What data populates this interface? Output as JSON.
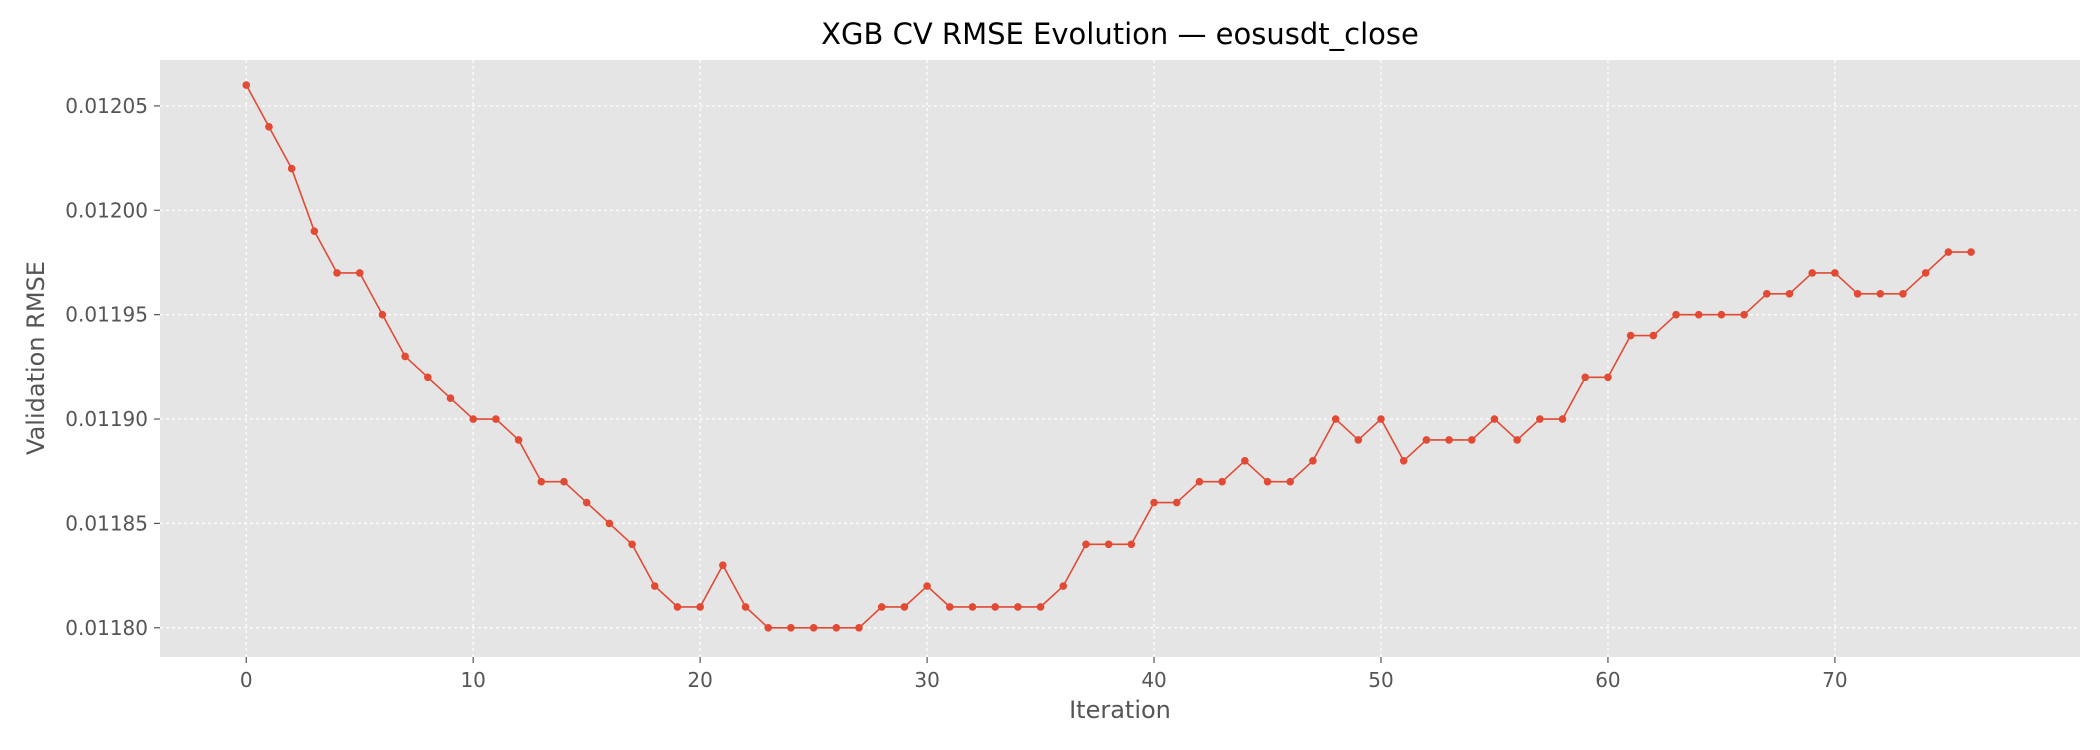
{
  "chart_data": {
    "type": "line",
    "title": "XGB CV RMSE Evolution — eosusdt_close",
    "xlabel": "Iteration",
    "ylabel": "Validation RMSE",
    "xlim": [
      -3.8,
      80.8
    ],
    "ylim": [
      0.011786,
      0.012072
    ],
    "xticks": [
      0,
      10,
      20,
      30,
      40,
      50,
      60,
      70
    ],
    "xtick_labels": [
      "0",
      "10",
      "20",
      "30",
      "40",
      "50",
      "60",
      "70"
    ],
    "yticks": [
      0.0118,
      0.01185,
      0.0119,
      0.01195,
      0.012,
      0.01205
    ],
    "ytick_labels": [
      "0.01180",
      "0.01185",
      "0.01190",
      "0.01195",
      "0.01200",
      "0.01205"
    ],
    "grid": true,
    "series": [
      {
        "color": "#e24a33",
        "x": [
          0,
          1,
          2,
          3,
          4,
          5,
          6,
          7,
          8,
          9,
          10,
          11,
          12,
          13,
          14,
          15,
          16,
          17,
          18,
          19,
          20,
          21,
          22,
          23,
          24,
          25,
          26,
          27,
          28,
          29,
          30,
          31,
          32,
          33,
          34,
          35,
          36,
          37,
          38,
          39,
          40,
          41,
          42,
          43,
          44,
          45,
          46,
          47,
          48,
          49,
          50,
          51,
          52,
          53,
          54,
          55,
          56,
          57,
          58,
          59,
          60,
          61,
          62,
          63,
          64,
          65,
          66,
          67,
          68,
          69,
          70,
          71,
          72,
          73,
          74,
          75,
          76
        ],
        "y": [
          0.01206,
          0.01204,
          0.01202,
          0.01199,
          0.01197,
          0.01197,
          0.01195,
          0.01193,
          0.01192,
          0.01191,
          0.0119,
          0.0119,
          0.01189,
          0.01187,
          0.01187,
          0.01186,
          0.01185,
          0.01184,
          0.01182,
          0.01181,
          0.01181,
          0.01183,
          0.01181,
          0.0118,
          0.0118,
          0.0118,
          0.0118,
          0.0118,
          0.01181,
          0.01181,
          0.01182,
          0.01181,
          0.01181,
          0.01181,
          0.01181,
          0.01181,
          0.01182,
          0.01184,
          0.01184,
          0.01184,
          0.01186,
          0.01186,
          0.01187,
          0.01187,
          0.01188,
          0.01187,
          0.01187,
          0.01188,
          0.0119,
          0.01189,
          0.0119,
          0.01188,
          0.01189,
          0.01189,
          0.01189,
          0.0119,
          0.01189,
          0.0119,
          0.0119,
          0.01192,
          0.01192,
          0.01194,
          0.01194,
          0.01195,
          0.01195,
          0.01195,
          0.01195,
          0.01196,
          0.01196,
          0.01197,
          0.01197,
          0.01196,
          0.01196,
          0.01196,
          0.01197,
          0.01198,
          0.01198
        ]
      }
    ]
  },
  "colors": {
    "plot_background": "#e5e5e5",
    "grid": "#ffffff",
    "series": "#e24a33"
  }
}
